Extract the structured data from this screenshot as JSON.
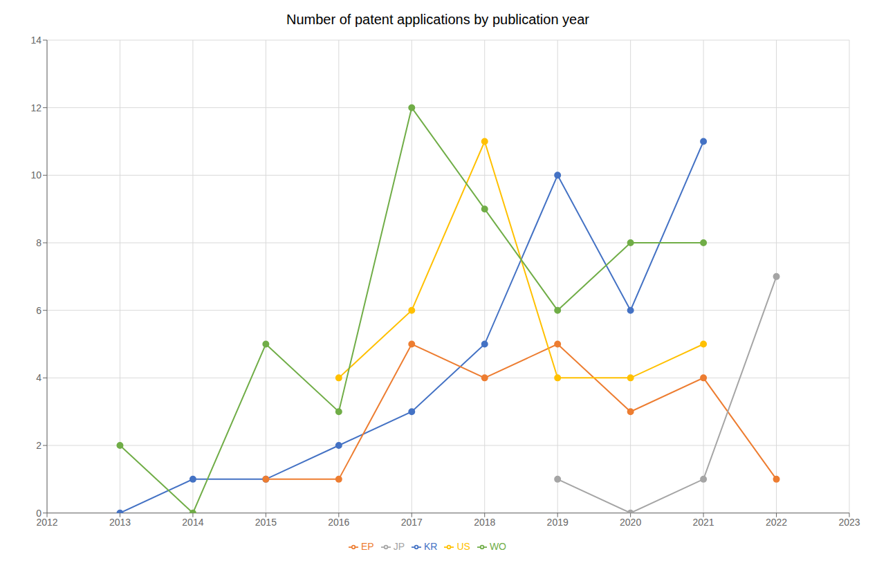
{
  "chart_data": {
    "type": "line",
    "title": "Number of patent applications by publication year",
    "x": [
      2013,
      2014,
      2015,
      2016,
      2017,
      2018,
      2019,
      2020,
      2021,
      2022
    ],
    "series": [
      {
        "name": "KR",
        "color": "#4472C4",
        "marker": "circle",
        "values": [
          0,
          1,
          1,
          2,
          3,
          5,
          10,
          6,
          11,
          null
        ]
      },
      {
        "name": "EP",
        "color": "#ED7D31",
        "marker": "circle",
        "values": [
          null,
          null,
          1,
          1,
          5,
          4,
          5,
          3,
          4,
          1
        ]
      },
      {
        "name": "JP",
        "color": "#A5A5A5",
        "marker": "circle",
        "values": [
          null,
          null,
          null,
          null,
          null,
          null,
          1,
          0,
          1,
          7
        ]
      },
      {
        "name": "US",
        "color": "#FFC000",
        "marker": "circle",
        "values": [
          null,
          null,
          null,
          4,
          6,
          11,
          4,
          4,
          5,
          null
        ]
      },
      {
        "name": "WO",
        "color": "#70AD47",
        "marker": "circle",
        "values": [
          2,
          0,
          5,
          3,
          12,
          9,
          6,
          8,
          8,
          null
        ]
      }
    ],
    "xlim": [
      2012,
      2023
    ],
    "xticks": [
      2012,
      2013,
      2014,
      2015,
      2016,
      2017,
      2018,
      2019,
      2020,
      2021,
      2022,
      2023
    ],
    "ylim": [
      0,
      14
    ],
    "yticks": [
      0,
      2,
      4,
      6,
      8,
      10,
      12,
      14
    ],
    "grid": true,
    "legend": "bottom"
  }
}
